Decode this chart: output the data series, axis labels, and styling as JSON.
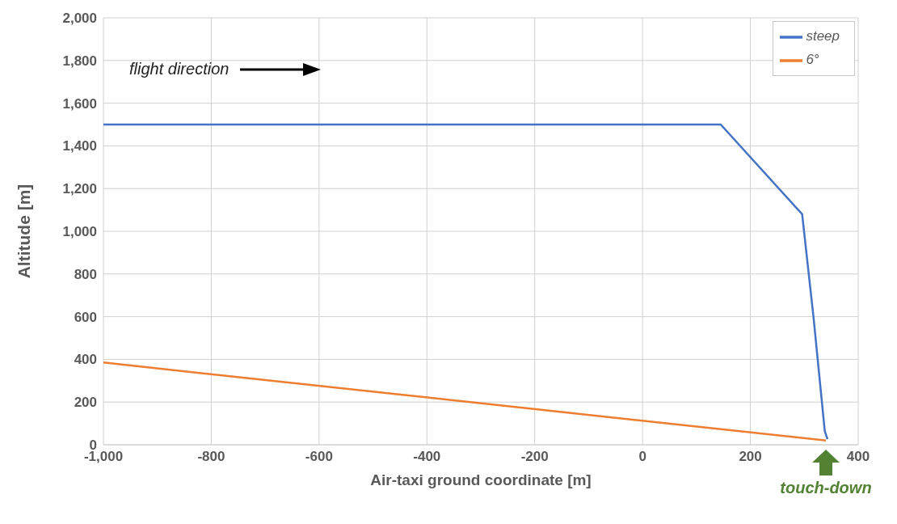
{
  "chart_data": {
    "type": "line",
    "xlabel": "Air-taxi ground coordinate [m]",
    "ylabel": "Altitude [m]",
    "series": [
      {
        "name": "steep",
        "color": "#4472c4",
        "x": [
          -1000,
          145,
          296,
          317,
          338,
          343
        ],
        "values": [
          1500,
          1500,
          1080,
          600,
          64,
          26
        ]
      },
      {
        "name": "6°",
        "color": "#ed7d31",
        "x": [
          -1000,
          340
        ],
        "values": [
          385,
          20
        ]
      }
    ],
    "xlim": [
      -1000,
      400
    ],
    "xticks": [
      {
        "value": -1000,
        "label": "-1,000"
      },
      -800,
      -600,
      -400,
      -200,
      0,
      200,
      400
    ],
    "ylim": [
      0,
      2000
    ],
    "yticks": [
      0,
      200,
      400,
      600,
      800,
      {
        "value": 1000,
        "label": "1,000"
      },
      {
        "value": 1200,
        "label": "1,200"
      },
      {
        "value": 1400,
        "label": "1,400"
      },
      {
        "value": 1600,
        "label": "1,600"
      },
      {
        "value": 1800,
        "label": "1,800"
      },
      {
        "value": 2000,
        "label": "2,000"
      }
    ],
    "grid": true,
    "legend": "top right",
    "marker": "none",
    "line_style": "solid",
    "annotations": [
      "flight direction",
      "touch-down"
    ]
  }
}
